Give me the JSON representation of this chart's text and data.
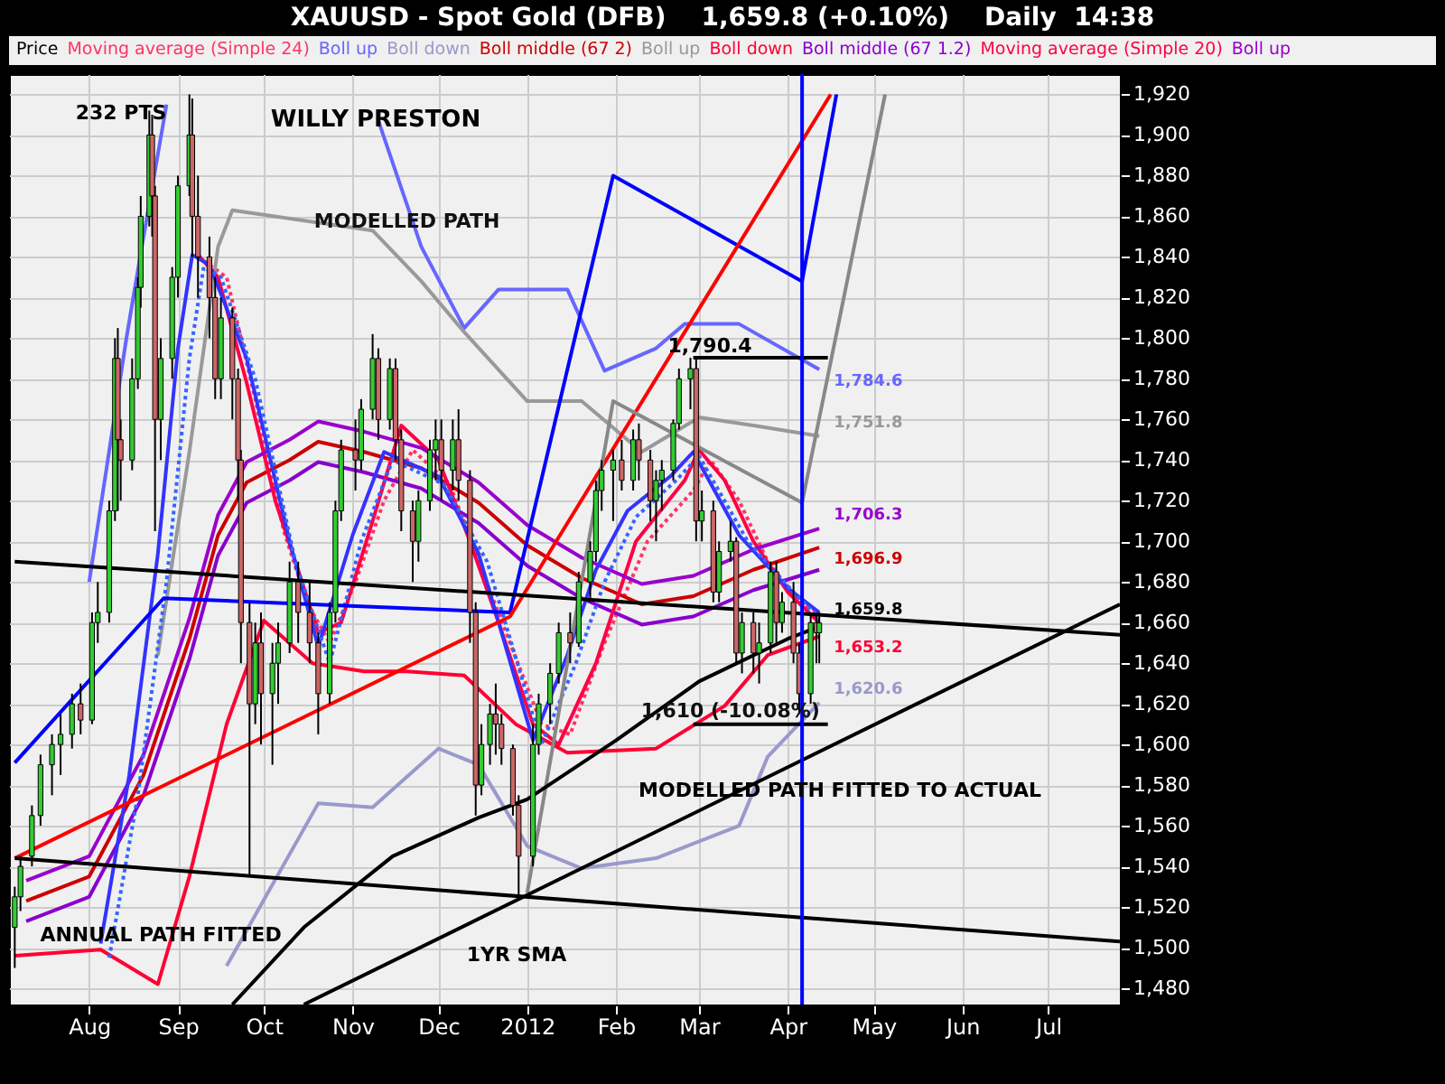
{
  "chart_data": {
    "type": "candlestick",
    "title": "XAUUSD - Spot Gold (DFB)    1,659.8 (+0.10%)    Daily  14:38",
    "legend": "top",
    "grid": true,
    "xlim": [
      "2011-07-04",
      "2012-07-26"
    ],
    "ylim": [
      1472,
      1930
    ],
    "xticks": [
      {
        "value": "2011-08-01",
        "label": "Aug"
      },
      {
        "value": "2011-09-01",
        "label": "Sep"
      },
      {
        "value": "2011-10-01",
        "label": "Oct"
      },
      {
        "value": "2011-11-01",
        "label": "Nov"
      },
      {
        "value": "2011-12-01",
        "label": "Dec"
      },
      {
        "value": "2012-01-01",
        "label": "2012"
      },
      {
        "value": "2012-02-01",
        "label": "Feb"
      },
      {
        "value": "2012-03-01",
        "label": "Mar"
      },
      {
        "value": "2012-04-01",
        "label": "Apr"
      },
      {
        "value": "2012-05-01",
        "label": "May"
      },
      {
        "value": "2012-06-01",
        "label": "Jun"
      },
      {
        "value": "2012-07-01",
        "label": "Jul"
      }
    ],
    "yticks": [
      {
        "value": 1480,
        "label": "1,480"
      },
      {
        "value": 1500,
        "label": "1,500"
      },
      {
        "value": 1520,
        "label": "1,520"
      },
      {
        "value": 1540,
        "label": "1,540"
      },
      {
        "value": 1560,
        "label": "1,560"
      },
      {
        "value": 1580,
        "label": "1,580"
      },
      {
        "value": 1600,
        "label": "1,600"
      },
      {
        "value": 1620,
        "label": "1,620"
      },
      {
        "value": 1640,
        "label": "1,640"
      },
      {
        "value": 1660,
        "label": "1,660"
      },
      {
        "value": 1680,
        "label": "1,680"
      },
      {
        "value": 1700,
        "label": "1,700"
      },
      {
        "value": 1720,
        "label": "1,720"
      },
      {
        "value": 1740,
        "label": "1,740"
      },
      {
        "value": 1760,
        "label": "1,760"
      },
      {
        "value": 1780,
        "label": "1,780"
      },
      {
        "value": 1800,
        "label": "1,800"
      },
      {
        "value": 1820,
        "label": "1,820"
      },
      {
        "value": 1840,
        "label": "1,840"
      },
      {
        "value": 1860,
        "label": "1,860"
      },
      {
        "value": 1880,
        "label": "1,880"
      },
      {
        "value": 1900,
        "label": "1,900"
      },
      {
        "value": 1920,
        "label": "1,920"
      }
    ],
    "series": [
      {
        "name": "Price",
        "type": "candlestick",
        "value_labels": [
          null,
          null,
          null,
          null,
          null,
          null,
          null,
          null,
          null,
          null,
          null,
          null,
          null,
          null,
          null,
          null,
          null,
          null,
          null,
          null,
          null,
          null,
          null,
          null,
          null,
          null,
          null,
          null,
          null,
          null,
          null,
          null,
          null,
          null,
          null,
          null,
          null,
          null,
          null,
          null,
          null,
          null,
          null,
          null,
          null,
          null,
          null,
          null,
          null,
          null,
          null,
          null,
          null,
          null,
          null,
          null,
          null,
          null,
          null,
          null,
          null,
          null,
          null,
          null,
          null,
          null,
          null,
          null,
          null,
          null,
          null,
          null,
          null,
          null,
          null,
          null,
          null,
          null,
          null,
          null,
          null,
          null,
          null,
          null,
          null,
          null,
          null,
          null,
          null,
          null,
          null,
          null,
          null,
          null,
          null,
          null,
          null,
          null,
          null,
          null,
          null,
          "1,659.8"
        ],
        "x": [
          "2011-07-06",
          "2011-07-08",
          "2011-07-12",
          "2011-07-15",
          "2011-07-19",
          "2011-07-22",
          "2011-07-26",
          "2011-07-29",
          "2011-08-02",
          "2011-08-04",
          "2011-08-08",
          "2011-08-10",
          "2011-08-11",
          "2011-08-12",
          "2011-08-16",
          "2011-08-18",
          "2011-08-19",
          "2011-08-22",
          "2011-08-23",
          "2011-08-24",
          "2011-08-26",
          "2011-08-30",
          "2011-09-01",
          "2011-09-05",
          "2011-09-06",
          "2011-09-08",
          "2011-09-12",
          "2011-09-14",
          "2011-09-16",
          "2011-09-20",
          "2011-09-22",
          "2011-09-23",
          "2011-09-26",
          "2011-09-28",
          "2011-09-30",
          "2011-10-04",
          "2011-10-06",
          "2011-10-10",
          "2011-10-13",
          "2011-10-17",
          "2011-10-20",
          "2011-10-24",
          "2011-10-26",
          "2011-10-28",
          "2011-11-02",
          "2011-11-04",
          "2011-11-08",
          "2011-11-10",
          "2011-11-14",
          "2011-11-16",
          "2011-11-18",
          "2011-11-22",
          "2011-11-24",
          "2011-11-28",
          "2011-11-30",
          "2011-12-02",
          "2011-12-06",
          "2011-12-08",
          "2011-12-12",
          "2011-12-14",
          "2011-12-16",
          "2011-12-19",
          "2011-12-21",
          "2011-12-23",
          "2011-12-27",
          "2011-12-29",
          "2012-01-03",
          "2012-01-05",
          "2012-01-09",
          "2012-01-12",
          "2012-01-16",
          "2012-01-19",
          "2012-01-23",
          "2012-01-25",
          "2012-01-27",
          "2012-01-31",
          "2012-02-03",
          "2012-02-07",
          "2012-02-09",
          "2012-02-13",
          "2012-02-15",
          "2012-02-17",
          "2012-02-21",
          "2012-02-23",
          "2012-02-27",
          "2012-02-29",
          "2012-03-02",
          "2012-03-06",
          "2012-03-08",
          "2012-03-12",
          "2012-03-14",
          "2012-03-16",
          "2012-03-20",
          "2012-03-22",
          "2012-03-26",
          "2012-03-28",
          "2012-03-30",
          "2012-04-03",
          "2012-04-05",
          "2012-04-09",
          "2012-04-11",
          "2012-04-12"
        ],
        "ohlc": [
          [
            1510,
            1530,
            1490,
            1525
          ],
          [
            1525,
            1545,
            1518,
            1540
          ],
          [
            1545,
            1570,
            1540,
            1565
          ],
          [
            1565,
            1595,
            1560,
            1590
          ],
          [
            1590,
            1605,
            1575,
            1600
          ],
          [
            1600,
            1615,
            1585,
            1605
          ],
          [
            1605,
            1625,
            1598,
            1620
          ],
          [
            1620,
            1630,
            1605,
            1612
          ],
          [
            1612,
            1665,
            1610,
            1660
          ],
          [
            1660,
            1680,
            1650,
            1665
          ],
          [
            1665,
            1720,
            1660,
            1715
          ],
          [
            1715,
            1800,
            1710,
            1790
          ],
          [
            1790,
            1805,
            1715,
            1750
          ],
          [
            1750,
            1760,
            1720,
            1740
          ],
          [
            1740,
            1790,
            1735,
            1780
          ],
          [
            1780,
            1830,
            1775,
            1825
          ],
          [
            1825,
            1870,
            1815,
            1860
          ],
          [
            1860,
            1912,
            1855,
            1900
          ],
          [
            1900,
            1910,
            1850,
            1870
          ],
          [
            1870,
            1875,
            1705,
            1760
          ],
          [
            1760,
            1800,
            1740,
            1790
          ],
          [
            1790,
            1835,
            1780,
            1830
          ],
          [
            1830,
            1880,
            1820,
            1875
          ],
          [
            1875,
            1920,
            1870,
            1900
          ],
          [
            1900,
            1918,
            1840,
            1860
          ],
          [
            1860,
            1880,
            1820,
            1840
          ],
          [
            1840,
            1850,
            1800,
            1820
          ],
          [
            1820,
            1830,
            1770,
            1780
          ],
          [
            1780,
            1820,
            1770,
            1810
          ],
          [
            1810,
            1815,
            1760,
            1780
          ],
          [
            1780,
            1785,
            1720,
            1740
          ],
          [
            1740,
            1745,
            1640,
            1660
          ],
          [
            1660,
            1670,
            1535,
            1620
          ],
          [
            1620,
            1660,
            1610,
            1650
          ],
          [
            1650,
            1665,
            1600,
            1625
          ],
          [
            1625,
            1650,
            1590,
            1640
          ],
          [
            1640,
            1660,
            1620,
            1650
          ],
          [
            1650,
            1690,
            1645,
            1680
          ],
          [
            1680,
            1690,
            1650,
            1665
          ],
          [
            1665,
            1680,
            1640,
            1650
          ],
          [
            1650,
            1655,
            1605,
            1625
          ],
          [
            1625,
            1670,
            1620,
            1665
          ],
          [
            1665,
            1720,
            1660,
            1715
          ],
          [
            1715,
            1750,
            1710,
            1745
          ],
          [
            1745,
            1760,
            1725,
            1740
          ],
          [
            1740,
            1770,
            1735,
            1765
          ],
          [
            1765,
            1802,
            1760,
            1790
          ],
          [
            1790,
            1795,
            1750,
            1760
          ],
          [
            1760,
            1790,
            1755,
            1785
          ],
          [
            1785,
            1790,
            1740,
            1750
          ],
          [
            1750,
            1755,
            1705,
            1715
          ],
          [
            1715,
            1720,
            1680,
            1700
          ],
          [
            1700,
            1725,
            1690,
            1720
          ],
          [
            1720,
            1750,
            1715,
            1745
          ],
          [
            1745,
            1760,
            1730,
            1750
          ],
          [
            1750,
            1760,
            1720,
            1735
          ],
          [
            1735,
            1760,
            1725,
            1750
          ],
          [
            1750,
            1765,
            1720,
            1730
          ],
          [
            1730,
            1735,
            1650,
            1665
          ],
          [
            1665,
            1670,
            1565,
            1580
          ],
          [
            1580,
            1610,
            1575,
            1600
          ],
          [
            1600,
            1620,
            1590,
            1615
          ],
          [
            1615,
            1630,
            1595,
            1610
          ],
          [
            1610,
            1615,
            1590,
            1598
          ],
          [
            1598,
            1600,
            1565,
            1570
          ],
          [
            1570,
            1575,
            1525,
            1545
          ],
          [
            1545,
            1610,
            1540,
            1600
          ],
          [
            1600,
            1625,
            1595,
            1620
          ],
          [
            1620,
            1640,
            1610,
            1635
          ],
          [
            1635,
            1660,
            1630,
            1655
          ],
          [
            1655,
            1665,
            1640,
            1650
          ],
          [
            1650,
            1685,
            1648,
            1680
          ],
          [
            1680,
            1700,
            1670,
            1695
          ],
          [
            1695,
            1730,
            1690,
            1725
          ],
          [
            1725,
            1740,
            1715,
            1735
          ],
          [
            1735,
            1745,
            1710,
            1740
          ],
          [
            1740,
            1750,
            1725,
            1730
          ],
          [
            1730,
            1755,
            1725,
            1750
          ],
          [
            1750,
            1758,
            1730,
            1740
          ],
          [
            1740,
            1745,
            1710,
            1720
          ],
          [
            1720,
            1735,
            1700,
            1730
          ],
          [
            1730,
            1740,
            1715,
            1735
          ],
          [
            1735,
            1760,
            1730,
            1758
          ],
          [
            1758,
            1785,
            1755,
            1780
          ],
          [
            1780,
            1790.4,
            1765,
            1785
          ],
          [
            1785,
            1790,
            1700,
            1710
          ],
          [
            1710,
            1725,
            1700,
            1715
          ],
          [
            1715,
            1720,
            1670,
            1675
          ],
          [
            1675,
            1700,
            1670,
            1695
          ],
          [
            1695,
            1710,
            1690,
            1700
          ],
          [
            1700,
            1702,
            1640,
            1645
          ],
          [
            1645,
            1665,
            1635,
            1660
          ],
          [
            1660,
            1665,
            1635,
            1645
          ],
          [
            1645,
            1660,
            1630,
            1650
          ],
          [
            1650,
            1690,
            1645,
            1685
          ],
          [
            1685,
            1690,
            1650,
            1660
          ],
          [
            1660,
            1675,
            1655,
            1670
          ],
          [
            1670,
            1680,
            1640,
            1645
          ],
          [
            1645,
            1650,
            1615,
            1625
          ],
          [
            1625,
            1665,
            1620,
            1660
          ],
          [
            1660,
            1665,
            1640,
            1655
          ],
          [
            1655,
            1665,
            1640,
            1659.8
          ]
        ],
        "colors": [
          "#33cc33",
          "#33cc33",
          "#33cc33",
          "#33cc33",
          "#33cc33",
          "#33cc33",
          "#33cc33",
          "#cc6666",
          "#33cc33",
          "#33cc33",
          "#33cc33",
          "#33cc33",
          "#cc6666",
          "#cc6666",
          "#33cc33",
          "#33cc33",
          "#33cc33",
          "#33cc33",
          "#cc6666",
          "#cc6666",
          "#33cc33",
          "#33cc33",
          "#33cc33",
          "#33cc33",
          "#cc6666",
          "#cc6666",
          "#cc6666",
          "#cc6666",
          "#33cc33",
          "#cc6666",
          "#cc6666",
          "#cc6666",
          "#cc6666",
          "#33cc33",
          "#cc6666",
          "#33cc33",
          "#33cc33",
          "#33cc33",
          "#cc6666",
          "#cc6666",
          "#cc6666",
          "#33cc33",
          "#33cc33",
          "#33cc33",
          "#cc6666",
          "#33cc33",
          "#33cc33",
          "#cc6666",
          "#33cc33",
          "#cc6666",
          "#cc6666",
          "#cc6666",
          "#33cc33",
          "#33cc33",
          "#33cc33",
          "#cc6666",
          "#33cc33",
          "#cc6666",
          "#cc6666",
          "#cc6666",
          "#33cc33",
          "#33cc33",
          "#cc6666",
          "#cc6666",
          "#cc6666",
          "#cc6666",
          "#33cc33",
          "#33cc33",
          "#33cc33",
          "#33cc33",
          "#cc6666",
          "#33cc33",
          "#33cc33",
          "#33cc33",
          "#33cc33",
          "#33cc33",
          "#cc6666",
          "#33cc33",
          "#cc6666",
          "#cc6666",
          "#33cc33",
          "#33cc33",
          "#33cc33",
          "#33cc33",
          "#33cc33",
          "#cc6666",
          "#33cc33",
          "#cc6666",
          "#33cc33",
          "#33cc33",
          "#cc6666",
          "#33cc33",
          "#cc6666",
          "#33cc33",
          "#33cc33",
          "#cc6666",
          "#33cc33",
          "#cc6666",
          "#cc6666",
          "#33cc33",
          "#cc6666",
          "#33cc33"
        ]
      },
      {
        "name": "Moving average (Simple 24)",
        "type": "line",
        "color": "#ff3366",
        "line_style": "dotted",
        "x": [
          "2011-09-10",
          "2011-09-18",
          "2011-09-28",
          "2011-10-08",
          "2011-10-16",
          "2011-10-24",
          "2011-11-02",
          "2011-11-12",
          "2011-11-22",
          "2011-12-05",
          "2011-12-15",
          "2011-12-26",
          "2012-01-06",
          "2012-01-16",
          "2012-01-28",
          "2012-02-12",
          "2012-02-28",
          "2012-03-05",
          "2012-03-15",
          "2012-03-25",
          "2012-04-05",
          "2012-04-12"
        ],
        "values": [
          1838,
          1830,
          1770,
          1705,
          1670,
          1650,
          1680,
          1720,
          1745,
          1728,
          1690,
          1650,
          1610,
          1605,
          1650,
          1700,
          1725,
          1740,
          1720,
          1690,
          1670,
          1665
        ]
      },
      {
        "name": "Boll up",
        "type": "line",
        "color": "#6666ff",
        "x": [
          "2011-08-01",
          "2011-08-14",
          "2011-08-20",
          "2011-08-28",
          "2011-09-15",
          "2011-11-10",
          "2011-11-25",
          "2011-12-10",
          "2011-12-22",
          "2012-01-15",
          "2012-01-28",
          "2012-02-15",
          "2012-02-25",
          "2012-03-15",
          "2012-04-12"
        ],
        "values": [
          1680,
          1800,
          1850,
          1915,
          null,
          1907,
          1845,
          1805,
          1824,
          1824,
          1784,
          1795,
          1807,
          1807,
          1784.6
        ],
        "value_labels": [
          null,
          null,
          null,
          null,
          null,
          null,
          null,
          null,
          null,
          null,
          null,
          null,
          null,
          null,
          "1,784.6"
        ]
      },
      {
        "name": "Boll down",
        "type": "line",
        "color": "#9999cc",
        "x": [
          "2011-09-18",
          "2011-10-20",
          "2011-11-08",
          "2011-12-01",
          "2011-12-15",
          "2012-01-01",
          "2012-01-20",
          "2012-02-15",
          "2012-03-15",
          "2012-03-25",
          "2012-04-12"
        ],
        "values": [
          1491,
          1571,
          1569,
          1598,
          1590,
          1550,
          1539,
          1544,
          1560,
          1594,
          1620.6
        ],
        "value_labels": [
          null,
          null,
          null,
          null,
          null,
          null,
          null,
          null,
          null,
          null,
          "1,620.6"
        ]
      },
      {
        "name": "Boll middle (67 2)",
        "type": "line",
        "color": "#cc0000",
        "x": [
          "2011-07-10",
          "2011-08-01",
          "2011-08-20",
          "2011-09-05",
          "2011-09-15",
          "2011-09-25",
          "2011-10-10",
          "2011-10-20",
          "2011-11-05",
          "2011-11-25",
          "2011-12-15",
          "2012-01-01",
          "2012-01-20",
          "2012-02-10",
          "2012-02-28",
          "2012-03-20",
          "2012-04-12"
        ],
        "values": [
          1523,
          1535,
          1585,
          1652,
          1703,
          1729,
          1740,
          1749,
          1744,
          1736,
          1719,
          1698,
          1682,
          1669,
          1673,
          1686,
          1696.9
        ],
        "value_labels": [
          null,
          null,
          null,
          null,
          null,
          null,
          null,
          null,
          null,
          null,
          null,
          null,
          null,
          null,
          null,
          null,
          "1,696.9"
        ]
      },
      {
        "name": "Boll up",
        "type": "line",
        "color": "#999999",
        "x": [
          "2011-08-25",
          "2011-09-05",
          "2011-09-15",
          "2011-09-20",
          "2011-11-08",
          "2011-11-25",
          "2011-12-10",
          "2012-01-01",
          "2012-01-20",
          "2012-02-10",
          "2012-03-01",
          "2012-03-20",
          "2012-04-12"
        ],
        "values": [
          1644,
          1744,
          1845,
          1863,
          1853,
          1828,
          1803,
          1769,
          1769,
          1744,
          1761,
          1757,
          1751.8
        ],
        "value_labels": [
          null,
          null,
          null,
          null,
          null,
          null,
          null,
          null,
          null,
          null,
          null,
          null,
          "1,751.8"
        ]
      },
      {
        "name": "Boll down",
        "type": "line",
        "color": "#ff0033",
        "x": [
          "2011-07-06",
          "2011-08-05",
          "2011-08-25",
          "2011-09-05",
          "2011-09-18",
          "2011-10-01",
          "2011-10-18",
          "2011-11-05",
          "2011-11-20",
          "2011-12-10",
          "2011-12-28",
          "2012-01-15",
          "2012-02-15",
          "2012-03-10",
          "2012-03-25",
          "2012-04-12"
        ],
        "values": [
          1496,
          1499,
          1482,
          1535,
          1610,
          1661,
          1640,
          1636,
          1636,
          1634,
          1610,
          1596,
          1598,
          1619,
          1644,
          1653.2
        ],
        "value_labels": [
          null,
          null,
          null,
          null,
          null,
          null,
          null,
          null,
          null,
          null,
          null,
          null,
          null,
          null,
          null,
          "1,653.2"
        ]
      },
      {
        "name": "Boll middle (67 1.2)",
        "type": "line",
        "color": "#8800cc",
        "x": [
          "2011-07-10",
          "2011-08-01",
          "2011-08-20",
          "2011-09-05",
          "2011-09-15",
          "2011-09-25",
          "2011-10-10",
          "2011-10-20",
          "2011-11-05",
          "2011-11-25",
          "2011-12-15",
          "2012-01-01",
          "2012-01-20",
          "2012-02-10",
          "2012-02-28",
          "2012-03-20",
          "2012-04-12"
        ],
        "values": [
          1513,
          1525,
          1575,
          1642,
          1693,
          1719,
          1730,
          1739,
          1734,
          1726,
          1709,
          1688,
          1672,
          1659,
          1663,
          1676,
          1686
        ]
      },
      {
        "name": "Moving average (Simple 20)",
        "type": "line",
        "color": "#ff0044",
        "x": [
          "2011-09-08",
          "2011-09-15",
          "2011-09-25",
          "2011-10-05",
          "2011-10-12",
          "2011-10-20",
          "2011-10-28",
          "2011-11-08",
          "2011-11-18",
          "2011-12-01",
          "2011-12-12",
          "2011-12-22",
          "2012-01-03",
          "2012-01-12",
          "2012-01-25",
          "2012-02-08",
          "2012-02-25",
          "2012-03-01",
          "2012-03-10",
          "2012-03-20",
          "2012-04-01",
          "2012-04-12"
        ],
        "values": [
          1841,
          1830,
          1778,
          1720,
          1690,
          1655,
          1660,
          1710,
          1757,
          1740,
          1700,
          1660,
          1610,
          1600,
          1640,
          1700,
          1730,
          1745,
          1730,
          1700,
          1675,
          1660
        ]
      },
      {
        "name": "Boll up",
        "type": "line",
        "color": "#9900cc",
        "x": [
          "2011-07-10",
          "2011-08-01",
          "2011-08-20",
          "2011-09-05",
          "2011-09-15",
          "2011-09-25",
          "2011-10-10",
          "2011-10-20",
          "2011-11-05",
          "2011-11-25",
          "2011-12-15",
          "2012-01-01",
          "2012-01-20",
          "2012-02-10",
          "2012-02-28",
          "2012-03-20",
          "2012-04-12"
        ],
        "values": [
          1533,
          1545,
          1595,
          1662,
          1713,
          1739,
          1750,
          1759,
          1754,
          1746,
          1729,
          1708,
          1692,
          1679,
          1683,
          1696,
          1706.3
        ],
        "value_labels": [
          null,
          null,
          null,
          null,
          null,
          null,
          null,
          null,
          null,
          null,
          null,
          null,
          null,
          null,
          null,
          null,
          "1,706.3"
        ]
      },
      {
        "type": "line",
        "color": "#3333ff",
        "x": [
          "2011-08-05",
          "2011-08-15",
          "2011-08-25",
          "2011-09-01",
          "2011-09-06",
          "2011-09-12",
          "2011-09-25",
          "2011-10-10",
          "2011-10-20",
          "2011-11-01",
          "2011-11-12",
          "2011-12-01",
          "2011-12-15",
          "2012-01-03",
          "2012-01-15",
          "2012-01-25",
          "2012-02-05",
          "2012-02-20",
          "2012-02-28",
          "2012-03-15",
          "2012-04-01",
          "2012-04-12"
        ],
        "values": [
          1502,
          1585,
          1694,
          1795,
          1841,
          1836,
          1790,
          1700,
          1648,
          1703,
          1744,
          1732,
          1694,
          1602,
          1644,
          1686,
          1715,
          1732,
          1744,
          1703,
          1677,
          1665
        ]
      },
      {
        "type": "line",
        "color": "#3366ff",
        "line_style": "dotted",
        "x": [
          "2011-08-08",
          "2011-08-18",
          "2011-08-28",
          "2011-09-05",
          "2011-09-10",
          "2011-09-16",
          "2011-09-28",
          "2011-10-12",
          "2011-10-24",
          "2011-11-04",
          "2011-11-15",
          "2011-12-03",
          "2011-12-18",
          "2012-01-06",
          "2012-01-18",
          "2012-01-28",
          "2012-02-08",
          "2012-02-22",
          "2012-03-01",
          "2012-03-18",
          "2012-04-03",
          "2012-04-12"
        ],
        "values": [
          1495,
          1575,
          1680,
          1790,
          1835,
          1830,
          1780,
          1690,
          1640,
          1700,
          1740,
          1728,
          1690,
          1600,
          1640,
          1680,
          1712,
          1730,
          1742,
          1700,
          1675,
          1662
        ]
      },
      {
        "type": "line",
        "color": "#0000ff",
        "x": [
          "2011-07-06",
          "2011-08-27",
          "2011-12-26",
          "2012-01-31",
          "2012-04-06",
          "2012-04-18"
        ],
        "values": [
          1591,
          1672,
          1665,
          1880,
          1828,
          1920
        ]
      },
      {
        "type": "line",
        "color": "#ff0000",
        "x": [
          "2011-07-06",
          "2011-12-26",
          "2012-04-16"
        ],
        "values": [
          1544,
          1663,
          1920
        ]
      },
      {
        "type": "line",
        "color": "#888888",
        "x": [
          "2012-01-01",
          "2012-01-31",
          "2012-04-06",
          "2012-05-05"
        ],
        "values": [
          1527,
          1769,
          1719,
          1920
        ]
      },
      {
        "type": "line",
        "color": "#000000",
        "x": [
          "2011-07-06",
          "2012-07-26"
        ],
        "values": [
          1690,
          1654
        ]
      },
      {
        "type": "line",
        "color": "#000000",
        "x": [
          "2011-07-06",
          "2012-07-26"
        ],
        "values": [
          1544,
          1503
        ]
      },
      {
        "type": "line",
        "color": "#000000",
        "x": [
          "2011-10-15",
          "2012-07-26"
        ],
        "values": [
          1472,
          1669
        ]
      },
      {
        "type": "line",
        "color": "#000000",
        "x": [
          "2011-09-20",
          "2011-10-15",
          "2011-11-15",
          "2011-12-15",
          "2012-01-01",
          "2012-02-01",
          "2012-03-01",
          "2012-04-01",
          "2012-04-12"
        ],
        "values": [
          1472,
          1510,
          1545,
          1564,
          1573,
          1602,
          1631,
          1652,
          1658
        ]
      },
      {
        "type": "line",
        "color": "#000000",
        "x": [
          "2012-02-28",
          "2012-04-15"
        ],
        "values": [
          1790.4,
          1790.4
        ]
      },
      {
        "type": "line",
        "color": "#000000",
        "x": [
          "2012-02-28",
          "2012-04-15"
        ],
        "values": [
          1610,
          1610
        ]
      }
    ],
    "ref_lines": [
      {
        "axis": "x",
        "value": "2012-04-06",
        "color": "#0000ff"
      }
    ],
    "annotations": [
      "WILLY PRESTON",
      "232 PTS",
      {
        "text": "MODELLED PATH",
        "x": "2011-11-20",
        "y": 1857
      },
      "ANNUAL PATH FITTED",
      "1YR SMA",
      "MODELLED PATH FITTED TO ACTUAL",
      "1,790.4",
      {
        "text": "1,610 (-10.08%)",
        "x": "2012-03-12",
        "y": 1616
      }
    ]
  }
}
